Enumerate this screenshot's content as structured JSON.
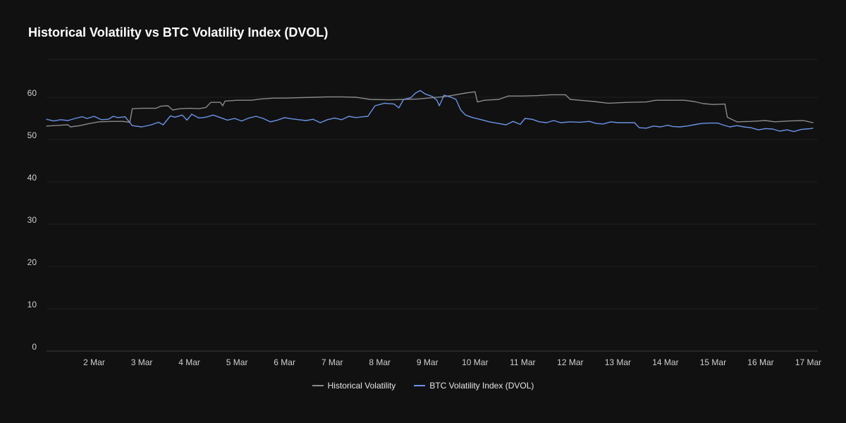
{
  "chart_data": {
    "type": "line",
    "title": "Historical Volatility vs BTC Volatility Index (DVOL)",
    "xlabel": "",
    "ylabel": "",
    "ylim": [
      0,
      60
    ],
    "yticks": [
      0,
      10,
      20,
      30,
      40,
      50,
      60
    ],
    "xlim": [
      1.0,
      17.2
    ],
    "xticks": [
      {
        "x": 2,
        "label": "2 Mar"
      },
      {
        "x": 3,
        "label": "3 Mar"
      },
      {
        "x": 4,
        "label": "4 Mar"
      },
      {
        "x": 5,
        "label": "5 Mar"
      },
      {
        "x": 6,
        "label": "6 Mar"
      },
      {
        "x": 7,
        "label": "7 Mar"
      },
      {
        "x": 8,
        "label": "8 Mar"
      },
      {
        "x": 9,
        "label": "9 Mar"
      },
      {
        "x": 10,
        "label": "10 Mar"
      },
      {
        "x": 11,
        "label": "11 Mar"
      },
      {
        "x": 12,
        "label": "12 Mar"
      },
      {
        "x": 13,
        "label": "13 Mar"
      },
      {
        "x": 14,
        "label": "14 Mar"
      },
      {
        "x": 15,
        "label": "15 Mar"
      },
      {
        "x": 16,
        "label": "16 Mar"
      },
      {
        "x": 17,
        "label": "17 Mar"
      }
    ],
    "grid": true,
    "legend_position": "bottom",
    "series": [
      {
        "name": "Historical Volatility",
        "color": "#8a8a8a",
        "points": [
          [
            1.0,
            53.2
          ],
          [
            1.3,
            53.4
          ],
          [
            1.45,
            53.5
          ],
          [
            1.5,
            53.0
          ],
          [
            1.7,
            53.3
          ],
          [
            1.9,
            53.8
          ],
          [
            2.1,
            54.2
          ],
          [
            2.4,
            54.3
          ],
          [
            2.6,
            54.3
          ],
          [
            2.75,
            54.1
          ],
          [
            2.8,
            57.3
          ],
          [
            3.0,
            57.4
          ],
          [
            3.3,
            57.4
          ],
          [
            3.4,
            57.9
          ],
          [
            3.55,
            58.0
          ],
          [
            3.65,
            57.0
          ],
          [
            3.8,
            57.3
          ],
          [
            4.0,
            57.4
          ],
          [
            4.2,
            57.3
          ],
          [
            4.35,
            57.6
          ],
          [
            4.45,
            58.8
          ],
          [
            4.65,
            58.8
          ],
          [
            4.7,
            58.0
          ],
          [
            4.75,
            59.1
          ],
          [
            5.0,
            59.3
          ],
          [
            5.3,
            59.3
          ],
          [
            5.5,
            59.6
          ],
          [
            5.75,
            59.8
          ],
          [
            6.0,
            59.8
          ],
          [
            6.3,
            59.9
          ],
          [
            6.6,
            60.0
          ],
          [
            6.9,
            60.1
          ],
          [
            7.2,
            60.1
          ],
          [
            7.5,
            60.0
          ],
          [
            7.8,
            59.5
          ],
          [
            8.2,
            59.4
          ],
          [
            8.5,
            59.5
          ],
          [
            8.8,
            59.6
          ],
          [
            9.1,
            59.9
          ],
          [
            9.3,
            60.1
          ],
          [
            9.5,
            60.4
          ],
          [
            9.8,
            61.0
          ],
          [
            10.0,
            61.3
          ],
          [
            10.05,
            58.9
          ],
          [
            10.2,
            59.3
          ],
          [
            10.5,
            59.5
          ],
          [
            10.7,
            60.3
          ],
          [
            11.0,
            60.3
          ],
          [
            11.3,
            60.4
          ],
          [
            11.6,
            60.6
          ],
          [
            11.9,
            60.6
          ],
          [
            12.0,
            59.5
          ],
          [
            12.2,
            59.3
          ],
          [
            12.5,
            59.0
          ],
          [
            12.8,
            58.6
          ],
          [
            13.2,
            58.8
          ],
          [
            13.6,
            58.9
          ],
          [
            13.8,
            59.3
          ],
          [
            14.1,
            59.3
          ],
          [
            14.4,
            59.3
          ],
          [
            14.6,
            59.0
          ],
          [
            14.8,
            58.5
          ],
          [
            15.0,
            58.3
          ],
          [
            15.25,
            58.4
          ],
          [
            15.3,
            55.3
          ],
          [
            15.5,
            54.2
          ],
          [
            15.8,
            54.3
          ],
          [
            16.1,
            54.5
          ],
          [
            16.3,
            54.2
          ],
          [
            16.6,
            54.4
          ],
          [
            16.9,
            54.5
          ],
          [
            17.1,
            54.0
          ]
        ]
      },
      {
        "name": "BTC Volatility Index (DVOL)",
        "color": "#6b93e6",
        "points": [
          [
            1.0,
            54.8
          ],
          [
            1.15,
            54.4
          ],
          [
            1.3,
            54.7
          ],
          [
            1.45,
            54.5
          ],
          [
            1.6,
            55.0
          ],
          [
            1.75,
            55.4
          ],
          [
            1.85,
            55.0
          ],
          [
            2.0,
            55.5
          ],
          [
            2.15,
            54.7
          ],
          [
            2.3,
            54.8
          ],
          [
            2.4,
            55.5
          ],
          [
            2.5,
            55.2
          ],
          [
            2.65,
            55.4
          ],
          [
            2.8,
            53.3
          ],
          [
            3.0,
            53.0
          ],
          [
            3.2,
            53.5
          ],
          [
            3.35,
            54.1
          ],
          [
            3.45,
            53.5
          ],
          [
            3.6,
            55.6
          ],
          [
            3.7,
            55.3
          ],
          [
            3.85,
            55.8
          ],
          [
            3.95,
            54.6
          ],
          [
            4.05,
            56.0
          ],
          [
            4.2,
            55.1
          ],
          [
            4.35,
            55.3
          ],
          [
            4.5,
            55.8
          ],
          [
            4.65,
            55.2
          ],
          [
            4.8,
            54.6
          ],
          [
            4.95,
            55.0
          ],
          [
            5.1,
            54.4
          ],
          [
            5.25,
            55.1
          ],
          [
            5.4,
            55.5
          ],
          [
            5.55,
            55.0
          ],
          [
            5.7,
            54.2
          ],
          [
            5.85,
            54.6
          ],
          [
            6.0,
            55.2
          ],
          [
            6.15,
            54.9
          ],
          [
            6.3,
            54.7
          ],
          [
            6.45,
            54.5
          ],
          [
            6.6,
            54.8
          ],
          [
            6.75,
            54.0
          ],
          [
            6.9,
            54.7
          ],
          [
            7.05,
            55.1
          ],
          [
            7.2,
            54.7
          ],
          [
            7.35,
            55.5
          ],
          [
            7.5,
            55.2
          ],
          [
            7.65,
            55.4
          ],
          [
            7.75,
            55.5
          ],
          [
            7.9,
            58.0
          ],
          [
            8.1,
            58.6
          ],
          [
            8.3,
            58.4
          ],
          [
            8.4,
            57.5
          ],
          [
            8.5,
            59.5
          ],
          [
            8.65,
            59.9
          ],
          [
            8.75,
            61.0
          ],
          [
            8.85,
            61.6
          ],
          [
            8.95,
            60.8
          ],
          [
            9.1,
            60.2
          ],
          [
            9.2,
            59.3
          ],
          [
            9.25,
            58.0
          ],
          [
            9.35,
            60.5
          ],
          [
            9.5,
            60.0
          ],
          [
            9.6,
            59.5
          ],
          [
            9.7,
            57.0
          ],
          [
            9.8,
            55.8
          ],
          [
            9.95,
            55.2
          ],
          [
            10.1,
            54.8
          ],
          [
            10.3,
            54.2
          ],
          [
            10.5,
            53.8
          ],
          [
            10.65,
            53.5
          ],
          [
            10.8,
            54.3
          ],
          [
            10.95,
            53.6
          ],
          [
            11.05,
            55.0
          ],
          [
            11.2,
            54.8
          ],
          [
            11.35,
            54.2
          ],
          [
            11.5,
            54.0
          ],
          [
            11.65,
            54.5
          ],
          [
            11.8,
            54.0
          ],
          [
            12.0,
            54.2
          ],
          [
            12.2,
            54.1
          ],
          [
            12.4,
            54.3
          ],
          [
            12.55,
            53.8
          ],
          [
            12.7,
            53.7
          ],
          [
            12.85,
            54.2
          ],
          [
            13.0,
            54.0
          ],
          [
            13.15,
            54.0
          ],
          [
            13.35,
            54.0
          ],
          [
            13.45,
            52.8
          ],
          [
            13.6,
            52.7
          ],
          [
            13.75,
            53.2
          ],
          [
            13.9,
            53.0
          ],
          [
            14.05,
            53.4
          ],
          [
            14.15,
            53.1
          ],
          [
            14.3,
            53.0
          ],
          [
            14.45,
            53.2
          ],
          [
            14.6,
            53.5
          ],
          [
            14.75,
            53.8
          ],
          [
            14.9,
            53.9
          ],
          [
            15.1,
            53.9
          ],
          [
            15.2,
            53.5
          ],
          [
            15.35,
            53.0
          ],
          [
            15.5,
            53.3
          ],
          [
            15.65,
            53.0
          ],
          [
            15.8,
            52.8
          ],
          [
            15.95,
            52.3
          ],
          [
            16.1,
            52.6
          ],
          [
            16.25,
            52.5
          ],
          [
            16.4,
            52.0
          ],
          [
            16.55,
            52.3
          ],
          [
            16.7,
            51.9
          ],
          [
            16.85,
            52.4
          ],
          [
            16.95,
            52.5
          ],
          [
            17.05,
            52.6
          ],
          [
            17.1,
            52.7
          ]
        ]
      }
    ]
  }
}
